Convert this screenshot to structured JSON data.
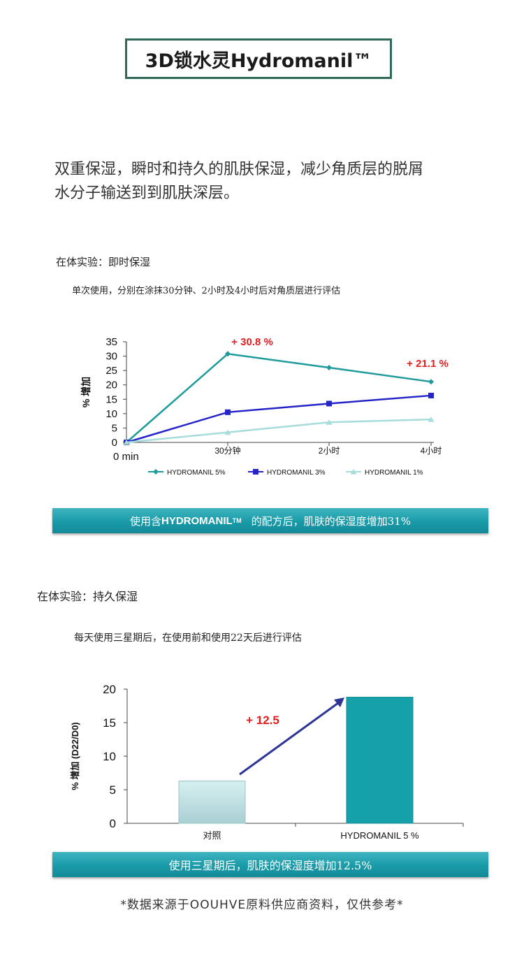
{
  "header": {
    "title": "3D锁水灵Hydromanil™"
  },
  "intro": {
    "line1": "双重保湿，瞬时和持久的肌肤保湿，减少角质层的脱屑",
    "line2": "水分子输送到到肌肤深层。"
  },
  "section1": {
    "heading": "在体实验：即时保湿",
    "subheading": "单次使用，分别在涂抹30分钟、2小时及4小时后对角质层进行评估",
    "banner": {
      "prefix": "使用含",
      "brand": "HYDROMANIL",
      "tm": "TM",
      "suffix": "的配方后，肌肤的保湿度增加31%"
    }
  },
  "section2": {
    "heading": "在体实验：持久保湿",
    "subheading": "每天使用三星期后，在使用前和使用22天后进行评估",
    "banner": {
      "text": "使用三星期后，肌肤的保湿度增加12.5%"
    }
  },
  "footnote": "*数据来源于OOUHVE原料供应商资料，仅供参考*",
  "chart_data": [
    {
      "type": "line",
      "categories": [
        "0 min",
        "30分钟",
        "2小时",
        "4小时"
      ],
      "ylabel": "% 增加",
      "ylim": [
        0,
        35
      ],
      "yticks": [
        0,
        5,
        10,
        15,
        20,
        25,
        30,
        35
      ],
      "grid": false,
      "legend_position": "bottom",
      "series": [
        {
          "name": "HYDROMANIL 5%",
          "values": [
            0,
            30.8,
            26,
            21.1
          ],
          "color": "#1f9b9b",
          "marker": "diamond"
        },
        {
          "name": "HYDROMANIL 3%",
          "values": [
            0,
            10.5,
            13.5,
            16.3
          ],
          "color": "#2424c8",
          "marker": "square"
        },
        {
          "name": "HYDROMANIL 1%",
          "values": [
            0,
            3.5,
            7,
            8
          ],
          "color": "#a6dcd9",
          "marker": "triangle"
        }
      ],
      "annotations": [
        {
          "text": "+ 30.8 %",
          "category": "30分钟",
          "value": 30.8,
          "color": "#e02020"
        },
        {
          "text": "+ 21.1 %",
          "category": "4小时",
          "value": 21.1,
          "color": "#e02020"
        }
      ]
    },
    {
      "type": "bar",
      "categories": [
        "对照",
        "HYDROMANIL 5 %"
      ],
      "values": [
        6.3,
        18.8
      ],
      "ylabel": "% 增加 (D22/D0)",
      "ylim": [
        0,
        20
      ],
      "yticks": [
        0,
        5,
        10,
        15,
        20
      ],
      "grid": false,
      "colors": [
        "#c6e6e8",
        "#16a0aa"
      ],
      "annotations": [
        {
          "text": "+ 12.5",
          "color": "#e02020"
        }
      ]
    }
  ]
}
